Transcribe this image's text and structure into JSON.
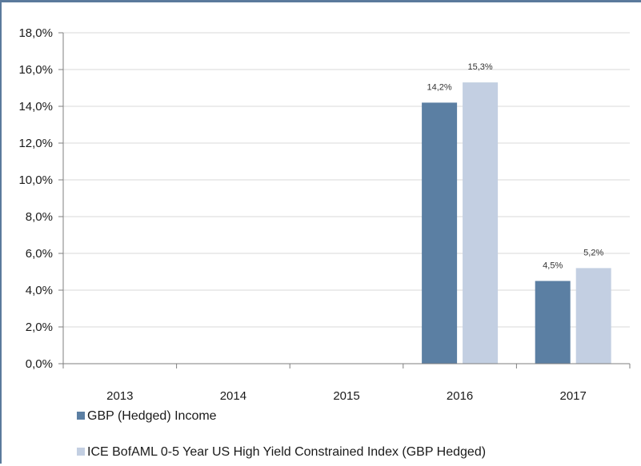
{
  "chart_data": {
    "type": "bar",
    "categories": [
      "2013",
      "2014",
      "2015",
      "2016",
      "2017"
    ],
    "series": [
      {
        "name": "GBP (Hedged) Income",
        "values": [
          null,
          null,
          null,
          14.2,
          4.5
        ],
        "labels": [
          "",
          "",
          "",
          "14,2%",
          "4,5%"
        ],
        "color": "#5b7fa3"
      },
      {
        "name": "ICE BofAML 0-5 Year US High Yield Constrained Index (GBP Hedged)",
        "values": [
          null,
          null,
          null,
          15.3,
          5.2
        ],
        "labels": [
          "",
          "",
          "",
          "15,3%",
          "5,2%"
        ],
        "color": "#c3cfe2"
      }
    ],
    "y_ticks": [
      "0,0%",
      "2,0%",
      "4,0%",
      "6,0%",
      "8,0%",
      "10,0%",
      "12,0%",
      "14,0%",
      "16,0%",
      "18,0%"
    ],
    "ylim": [
      0,
      18
    ],
    "y_step": 2,
    "grid": true,
    "gridline_color": "#d9d9d9",
    "legend_position": "bottom-left"
  }
}
